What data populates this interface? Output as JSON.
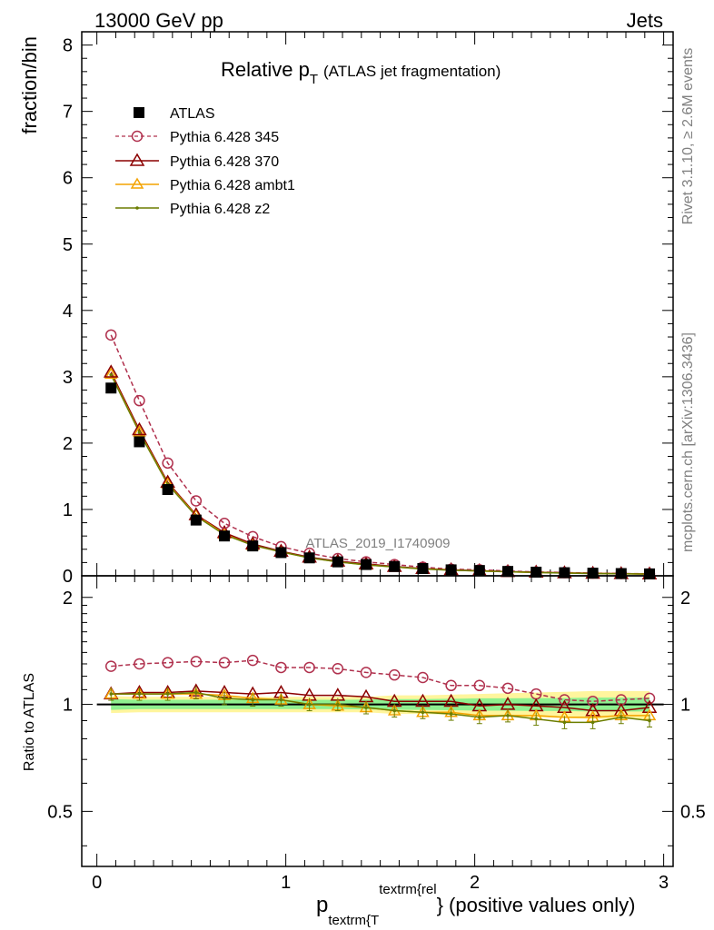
{
  "header": {
    "energy_label": "13000 GeV pp",
    "category_label": "Jets"
  },
  "side_labels": {
    "rivet": "Rivet 3.1.10, ≥ 2.6M events",
    "mcplots": "mcplots.cern.ch [arXiv:1306.3436]"
  },
  "analysis_tag": "ATLAS_2019_I1740909",
  "chart_data": [
    {
      "type": "line",
      "panel": "main",
      "title_main": "Relative p",
      "title_sub": "T",
      "title_rest": "(ATLAS jet fragmentation)",
      "ylabel": "fraction/bin",
      "xlim": [
        -0.08,
        3.05
      ],
      "ylim": [
        0,
        8.2
      ],
      "yticks": [
        0,
        1,
        2,
        3,
        4,
        5,
        6,
        7,
        8
      ],
      "xticks": [
        0,
        1,
        2,
        3
      ],
      "grid": false,
      "legend_position": "top-left",
      "x": [
        0.075,
        0.225,
        0.375,
        0.525,
        0.675,
        0.825,
        0.975,
        1.125,
        1.275,
        1.425,
        1.575,
        1.725,
        1.875,
        2.025,
        2.175,
        2.325,
        2.475,
        2.625,
        2.775,
        2.925
      ],
      "series": [
        {
          "name": "ATLAS",
          "color": "#000000",
          "marker": "square",
          "values": [
            2.83,
            2.02,
            1.3,
            0.84,
            0.6,
            0.45,
            0.35,
            0.27,
            0.21,
            0.17,
            0.14,
            0.11,
            0.09,
            0.08,
            0.066,
            0.055,
            0.047,
            0.04,
            0.034,
            0.029
          ]
        },
        {
          "name": "Pythia 6.428 345",
          "color": "#b0304d",
          "marker": "circle",
          "dashed": true,
          "values": [
            3.63,
            2.64,
            1.7,
            1.13,
            0.79,
            0.59,
            0.44,
            0.34,
            0.26,
            0.21,
            0.17,
            0.13,
            0.1,
            0.09,
            0.072,
            0.058,
            0.049,
            0.041,
            0.035,
            0.03
          ]
        },
        {
          "name": "Pythia 6.428 370",
          "color": "#8b0000",
          "marker": "triangle",
          "dashed": false,
          "values": [
            3.07,
            2.2,
            1.41,
            0.92,
            0.65,
            0.48,
            0.37,
            0.28,
            0.22,
            0.18,
            0.14,
            0.11,
            0.09,
            0.077,
            0.064,
            0.054,
            0.045,
            0.038,
            0.032,
            0.028
          ]
        },
        {
          "name": "Pythia 6.428 ambt1",
          "color": "#f4a300",
          "marker": "triangle",
          "dashed": false,
          "values": [
            3.04,
            2.17,
            1.39,
            0.91,
            0.63,
            0.46,
            0.36,
            0.27,
            0.21,
            0.165,
            0.134,
            0.104,
            0.085,
            0.073,
            0.06,
            0.05,
            0.043,
            0.036,
            0.031,
            0.026
          ]
        },
        {
          "name": "Pythia 6.428 z2",
          "color": "#6b7d00",
          "marker": "dot",
          "dashed": false,
          "values": [
            3.03,
            2.16,
            1.38,
            0.9,
            0.62,
            0.46,
            0.36,
            0.27,
            0.21,
            0.165,
            0.134,
            0.103,
            0.084,
            0.072,
            0.061,
            0.05,
            0.041,
            0.035,
            0.031,
            0.026
          ]
        }
      ]
    },
    {
      "type": "line",
      "panel": "ratio",
      "ylabel": "Ratio to ATLAS",
      "xlabel_main": "p",
      "xlabel_sub": "textrm{T",
      "xlabel_sup": "textrm{rel",
      "xlabel_rest": "} (positive values only)",
      "xlim": [
        -0.08,
        3.05
      ],
      "ylim": [
        0.35,
        2.3
      ],
      "log_y": true,
      "yticks": [
        0.5,
        1,
        2
      ],
      "xticks": [
        0,
        1,
        2,
        3
      ],
      "reference_line": 1,
      "x": [
        0.075,
        0.225,
        0.375,
        0.525,
        0.675,
        0.825,
        0.975,
        1.125,
        1.275,
        1.425,
        1.575,
        1.725,
        1.875,
        2.025,
        2.175,
        2.325,
        2.475,
        2.625,
        2.775,
        2.925
      ],
      "band_inner": [
        0.035,
        0.03,
        0.03,
        0.03,
        0.03,
        0.03,
        0.03,
        0.03,
        0.03,
        0.032,
        0.035,
        0.035,
        0.037,
        0.04,
        0.04,
        0.042,
        0.042,
        0.045,
        0.045,
        0.045
      ],
      "band_outer": [
        0.055,
        0.05,
        0.05,
        0.05,
        0.05,
        0.05,
        0.05,
        0.05,
        0.05,
        0.05,
        0.06,
        0.06,
        0.065,
        0.07,
        0.075,
        0.08,
        0.085,
        0.09,
        0.09,
        0.09
      ],
      "series": [
        {
          "name": "Pythia 6.428 345",
          "color": "#b0304d",
          "marker": "circle",
          "dashed": true,
          "values": [
            1.28,
            1.3,
            1.31,
            1.32,
            1.31,
            1.33,
            1.27,
            1.27,
            1.26,
            1.23,
            1.21,
            1.19,
            1.13,
            1.13,
            1.11,
            1.07,
            1.03,
            1.02,
            1.03,
            1.04
          ]
        },
        {
          "name": "Pythia 6.428 370",
          "color": "#8b0000",
          "marker": "triangle",
          "dashed": false,
          "values": [
            1.07,
            1.08,
            1.08,
            1.09,
            1.08,
            1.07,
            1.08,
            1.06,
            1.06,
            1.05,
            1.02,
            1.02,
            1.02,
            0.99,
            1.0,
            0.99,
            0.98,
            0.96,
            0.96,
            0.98
          ]
        },
        {
          "name": "Pythia 6.428 ambt1",
          "color": "#f4a300",
          "marker": "triangle",
          "dashed": false,
          "values": [
            1.07,
            1.07,
            1.07,
            1.07,
            1.06,
            1.04,
            1.03,
            1.0,
            0.99,
            0.98,
            0.96,
            0.95,
            0.95,
            0.93,
            0.93,
            0.93,
            0.92,
            0.92,
            0.93,
            0.93
          ]
        },
        {
          "name": "Pythia 6.428 z2",
          "color": "#6b7d00",
          "marker": "dot",
          "dashed": false,
          "values": [
            1.07,
            1.07,
            1.07,
            1.08,
            1.04,
            1.03,
            1.03,
            1.0,
            1.0,
            0.98,
            0.96,
            0.95,
            0.94,
            0.92,
            0.93,
            0.91,
            0.89,
            0.89,
            0.92,
            0.9
          ]
        }
      ]
    }
  ]
}
